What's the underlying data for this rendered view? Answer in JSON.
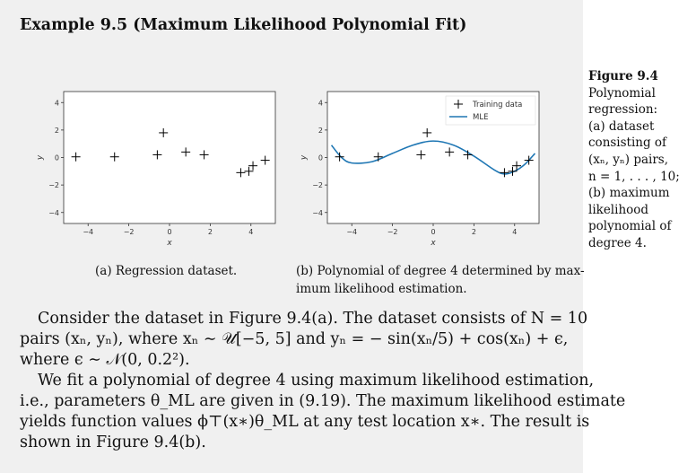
{
  "title": "Example 9.5 (Maximum Likelihood Polynomial Fit)",
  "chart_data": [
    {
      "type": "scatter",
      "caption": "(a) Regression dataset.",
      "xlabel": "x",
      "ylabel": "y",
      "xlim": [
        -5.2,
        5.2
      ],
      "ylim": [
        -4.8,
        4.8
      ],
      "xticks": [
        -4,
        -2,
        0,
        2,
        4
      ],
      "yticks": [
        4,
        2,
        0,
        -2,
        -4
      ],
      "tick_labels_x": [
        "−4",
        "−2",
        "0",
        "2",
        "4"
      ],
      "tick_labels_y": [
        "4",
        "2",
        "0",
        "−2",
        "−4"
      ],
      "points": [
        [
          -4.6,
          0.05
        ],
        [
          -2.7,
          0.05
        ],
        [
          -0.6,
          0.2
        ],
        [
          -0.3,
          1.8
        ],
        [
          0.8,
          0.4
        ],
        [
          1.7,
          0.2
        ],
        [
          3.5,
          -1.1
        ],
        [
          3.9,
          -1.0
        ],
        [
          4.1,
          -0.6
        ],
        [
          4.7,
          -0.2
        ]
      ]
    },
    {
      "type": "line",
      "caption_lines": [
        "(b) Polynomial of degree 4 determined by max-",
        "imum likelihood estimation."
      ],
      "xlabel": "x",
      "ylabel": "y",
      "xlim": [
        -5.2,
        5.2
      ],
      "ylim": [
        -4.8,
        4.8
      ],
      "xticks": [
        -4,
        -2,
        0,
        2,
        4
      ],
      "yticks": [
        4,
        2,
        0,
        -2,
        -4
      ],
      "tick_labels_x": [
        "−4",
        "−2",
        "0",
        "2",
        "4"
      ],
      "tick_labels_y": [
        "4",
        "2",
        "0",
        "−2",
        "−4"
      ],
      "legend_position": "top-right",
      "series": [
        {
          "name": "Training data",
          "kind": "scatter",
          "values": [
            [
              -4.6,
              0.05
            ],
            [
              -2.7,
              0.05
            ],
            [
              -0.6,
              0.2
            ],
            [
              -0.3,
              1.8
            ],
            [
              0.8,
              0.4
            ],
            [
              1.7,
              0.2
            ],
            [
              3.5,
              -1.1
            ],
            [
              3.9,
              -1.0
            ],
            [
              4.1,
              -0.6
            ],
            [
              4.7,
              -0.2
            ]
          ]
        },
        {
          "name": "MLE",
          "kind": "line",
          "color": "#1f77b4",
          "values": [
            [
              -5,
              0.9
            ],
            [
              -4.5,
              0.0
            ],
            [
              -4,
              -0.4
            ],
            [
              -3,
              -0.3
            ],
            [
              -2,
              0.3
            ],
            [
              -1,
              0.9
            ],
            [
              0,
              1.2
            ],
            [
              1,
              0.9
            ],
            [
              2,
              0.1
            ],
            [
              3,
              -0.9
            ],
            [
              3.5,
              -1.2
            ],
            [
              4,
              -1.0
            ],
            [
              4.5,
              -0.5
            ],
            [
              5,
              0.3
            ]
          ]
        }
      ]
    }
  ],
  "paragraph": {
    "lines": [
      "Consider the dataset in Figure 9.4(a). The dataset consists of N = 10",
      "pairs (xₙ, yₙ), where xₙ ∼ 𝒰[−5, 5] and yₙ = − sin(xₙ/5) + cos(xₙ) + ϵ,",
      "where ϵ ∼ 𝒩(0, 0.2²).",
      "We fit a polynomial of degree 4 using maximum likelihood estimation,",
      "i.e., parameters θ_ML are given in (9.19). The maximum likelihood estimate",
      "yields function values ϕ⊤(x∗)θ_ML at any test location x∗. The result is",
      "shown in Figure 9.4(b)."
    ]
  },
  "sidebar": {
    "figure_label": "Figure 9.4",
    "lines": [
      "Polynomial",
      "regression:",
      "(a) dataset",
      "consisting of",
      "(xₙ, yₙ) pairs,",
      "n = 1, . . . , 10;",
      "(b) maximum",
      "likelihood",
      "polynomial of",
      "degree 4."
    ]
  }
}
